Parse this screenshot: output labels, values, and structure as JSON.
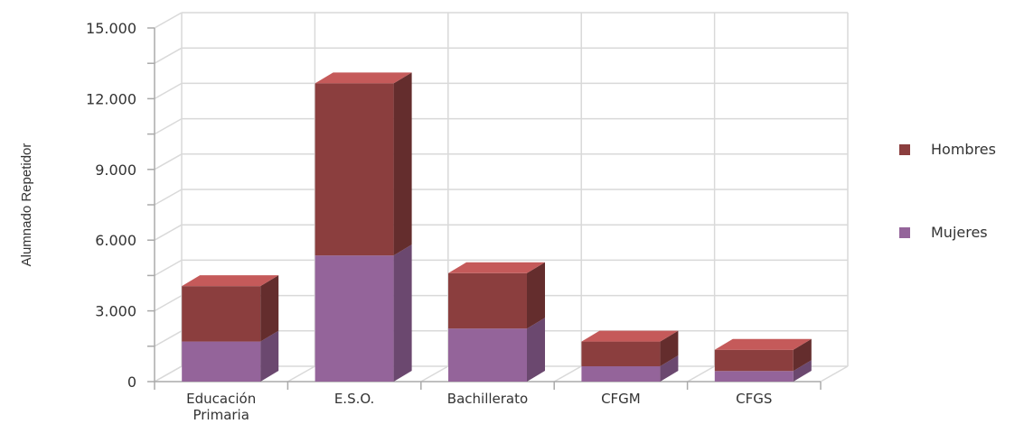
{
  "chart_data": {
    "type": "bar",
    "stacked": true,
    "three_d": true,
    "categories": [
      [
        "Educación",
        "Primaria"
      ],
      [
        "E.S.O."
      ],
      [
        "Bachillerato"
      ],
      [
        "CFGM"
      ],
      [
        "CFGS"
      ]
    ],
    "series": [
      {
        "name": "Mujeres",
        "color": "#94649a",
        "values": [
          1700,
          5350,
          2250,
          650,
          450
        ]
      },
      {
        "name": "Hombres",
        "color": "#8b3e3e",
        "values": [
          2350,
          7300,
          2350,
          1050,
          900
        ]
      }
    ],
    "ylabel": "Alumnado Repetidor",
    "xlabel": "",
    "ylim": [
      0,
      15000
    ],
    "yticks": [
      {
        "value": 0,
        "label": "0"
      },
      {
        "value": 3000,
        "label": "3.000"
      },
      {
        "value": 6000,
        "label": "6.000"
      },
      {
        "value": 9000,
        "label": "9.000"
      },
      {
        "value": 12000,
        "label": "12.000"
      },
      {
        "value": 15000,
        "label": "15.000"
      }
    ],
    "ygrid_step": 1500,
    "legend": {
      "placement": "right",
      "order": [
        "Hombres",
        "Mujeres"
      ]
    },
    "grid": true
  }
}
